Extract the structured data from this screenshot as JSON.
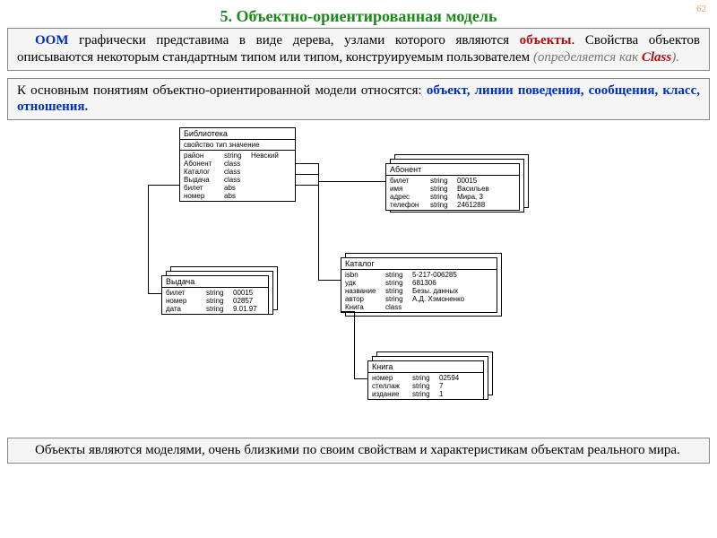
{
  "page_number": "62",
  "colors": {
    "title_green": "#1a8a1a",
    "blue": "#0030c0",
    "red": "#b01010",
    "text": "#222222",
    "gray_italic": "#777777",
    "box_bg": "#f5f5f5",
    "box_border": "#888888"
  },
  "title": "5. Объектно-ориентированная модель",
  "para1": {
    "lead": "ООМ",
    "t1": " графически представима в виде дерева, узлами которого являются ",
    "bold": "объекты",
    "t2": ". Свойства объектов описываются некоторым стандартным типом или типом, конструируемым пользователем ",
    "paren_open": "(определяется как ",
    "class_word": "Class",
    "paren_close": ")."
  },
  "para2": {
    "t1": "К основным понятиям объектно-ориентированной модели относятся: ",
    "bold": "объект, линии поведения, сообщения, класс, отношения."
  },
  "bottom": {
    "text": "Объекты являются моделями, очень близкими по своим свойствам и характеристикам объектам реального мира."
  },
  "diagram": {
    "library": {
      "title": "Библиотека",
      "subhead": "свойство  тип  значение",
      "rows": [
        [
          "район",
          "string",
          "Невский"
        ],
        [
          "Абонент",
          "class",
          ""
        ],
        [
          "Каталог",
          "class",
          ""
        ],
        [
          "Выдача",
          "class",
          ""
        ],
        [
          "билет",
          "abs",
          ""
        ],
        [
          "номер",
          "abs",
          ""
        ]
      ]
    },
    "abonent": {
      "title": "Абонент",
      "rows": [
        [
          "билет",
          "string",
          "00015"
        ],
        [
          "имя",
          "string",
          "Васильев"
        ],
        [
          "адрес",
          "string",
          "Мира, 3"
        ],
        [
          "телефон",
          "string",
          "2461288"
        ]
      ]
    },
    "vydacha": {
      "title": "Выдача",
      "rows": [
        [
          "билет",
          "string",
          "00015"
        ],
        [
          "номер",
          "string",
          "02857"
        ],
        [
          "дата",
          "string",
          "9.01.97"
        ]
      ]
    },
    "katalog": {
      "title": "Каталог",
      "rows": [
        [
          "isbn",
          "string",
          "5-217-006285"
        ],
        [
          "удк",
          "string",
          "681306"
        ],
        [
          "название",
          "string",
          "Безы. данных"
        ],
        [
          "автор",
          "string",
          "А.Д. Хэмоненко"
        ],
        [
          "Книга",
          "class",
          ""
        ]
      ]
    },
    "kniga": {
      "title": "Книга",
      "rows": [
        [
          "номер",
          "string",
          "02594"
        ],
        [
          "стеллаж",
          "string",
          "7"
        ],
        [
          "издание",
          "string",
          "1"
        ]
      ]
    }
  }
}
